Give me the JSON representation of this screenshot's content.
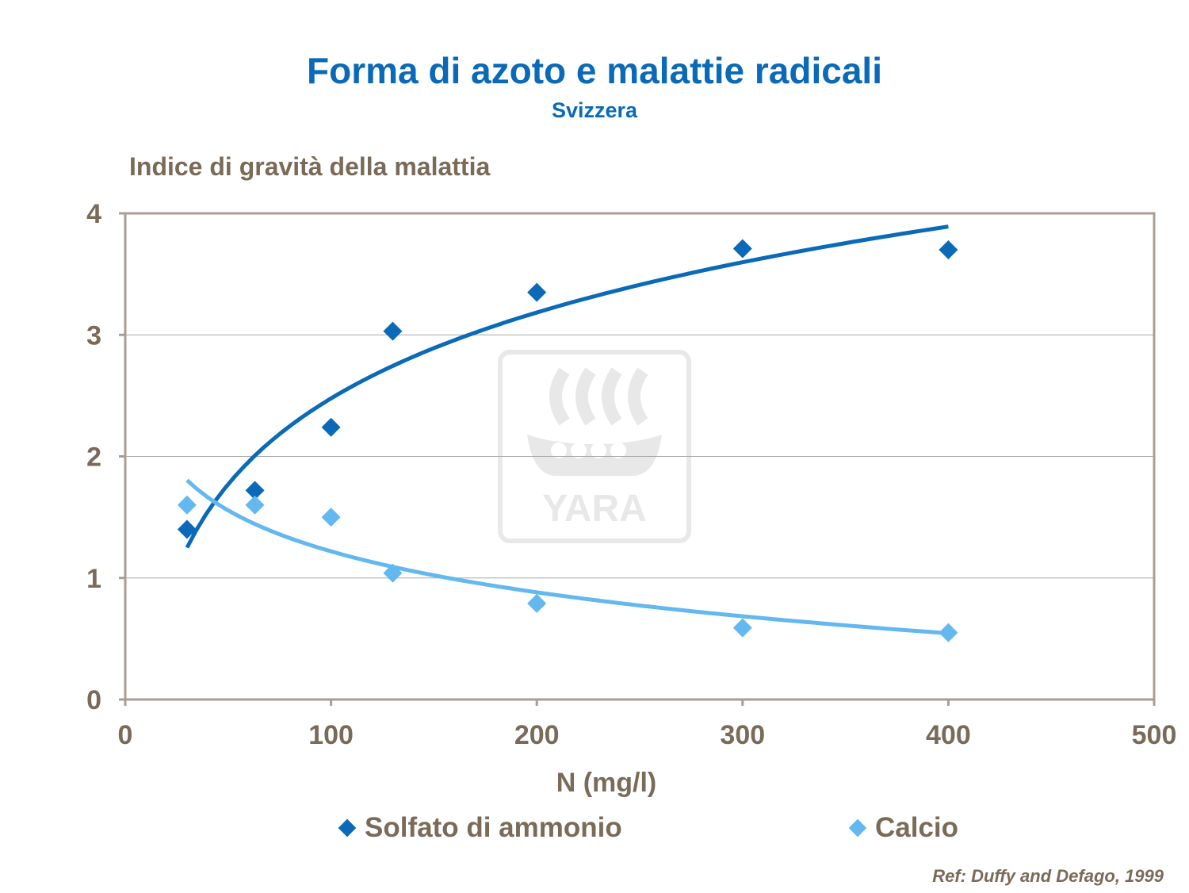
{
  "header": {
    "title": "Forma di azoto e malattie radicali",
    "subtitle": "Svizzera"
  },
  "footer": {
    "reference": "Ref: Duffy and Defago, 1999"
  },
  "colors": {
    "series1": "#0a6ab7",
    "series2": "#64b8f0",
    "axis": "#a99e94",
    "text": "#7a6a58",
    "title": "#0a6ab7"
  },
  "watermark": {
    "logo": "YARA"
  },
  "chart_data": {
    "type": "scatter",
    "title": "Forma di azoto e malattie radicali",
    "subtitle": "Svizzera",
    "xlabel": "N (mg/l)",
    "ylabel": "Indice di gravità della malattia",
    "xlim": [
      0,
      500
    ],
    "ylim": [
      0,
      4
    ],
    "xticks": [
      "0",
      "100",
      "200",
      "300",
      "400",
      "500"
    ],
    "yticks": [
      "0",
      "1",
      "2",
      "3",
      "4"
    ],
    "grid": "horizontal",
    "legend_position": "bottom",
    "series": [
      {
        "name": "Solfato di ammonio",
        "color": "#0a6ab7",
        "marker": "diamond",
        "trendline": "logarithmic, increasing",
        "points": [
          {
            "x": 30,
            "y": 1.4
          },
          {
            "x": 63,
            "y": 1.72
          },
          {
            "x": 100,
            "y": 2.24
          },
          {
            "x": 130,
            "y": 3.03
          },
          {
            "x": 200,
            "y": 3.35
          },
          {
            "x": 300,
            "y": 3.71
          },
          {
            "x": 400,
            "y": 3.7
          }
        ]
      },
      {
        "name": "Calcio",
        "color": "#64b8f0",
        "marker": "diamond",
        "trendline": "logarithmic, decreasing",
        "points": [
          {
            "x": 30,
            "y": 1.6
          },
          {
            "x": 63,
            "y": 1.6
          },
          {
            "x": 100,
            "y": 1.5
          },
          {
            "x": 130,
            "y": 1.04
          },
          {
            "x": 200,
            "y": 0.79
          },
          {
            "x": 300,
            "y": 0.59
          },
          {
            "x": 400,
            "y": 0.55
          }
        ]
      }
    ]
  }
}
